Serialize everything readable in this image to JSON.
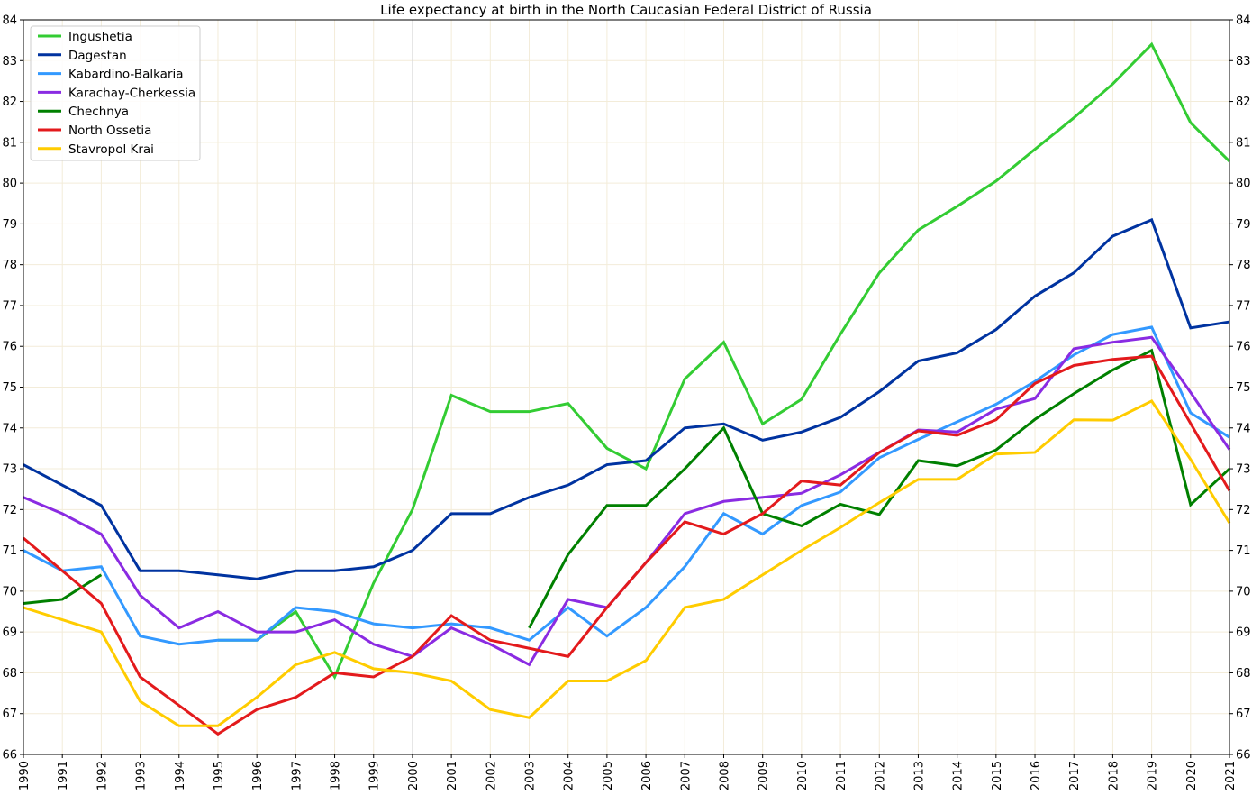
{
  "chart_data": {
    "type": "line",
    "title": "Life expectancy at birth in the North Caucasian Federal District of Russia",
    "xlabel": "",
    "ylabel": "",
    "x": [
      1990,
      1991,
      1992,
      1993,
      1994,
      1995,
      1996,
      1997,
      1998,
      1999,
      2000,
      2001,
      2002,
      2003,
      2004,
      2005,
      2006,
      2007,
      2008,
      2009,
      2010,
      2011,
      2012,
      2013,
      2014,
      2015,
      2016,
      2017,
      2018,
      2019,
      2020,
      2021
    ],
    "xlim": [
      1990,
      2021
    ],
    "ylim": [
      66,
      84
    ],
    "yticks": [
      66,
      67,
      68,
      69,
      70,
      71,
      72,
      73,
      74,
      75,
      76,
      77,
      78,
      79,
      80,
      81,
      82,
      83,
      84
    ],
    "grid": true,
    "highlight_x": 2000,
    "legend_position": "top-left",
    "series": [
      {
        "name": "Ingushetia",
        "color": "#33cc33",
        "values": [
          null,
          null,
          null,
          null,
          null,
          68.8,
          68.8,
          69.5,
          67.9,
          70.2,
          72.0,
          74.8,
          74.4,
          74.4,
          74.6,
          73.5,
          73.0,
          75.2,
          76.1,
          74.1,
          74.7,
          76.3,
          77.8,
          78.85,
          79.43,
          80.05,
          80.83,
          81.6,
          82.43,
          83.4,
          81.48,
          80.53
        ]
      },
      {
        "name": "Dagestan",
        "color": "#0033a0",
        "values": [
          73.1,
          72.6,
          72.1,
          70.5,
          70.5,
          70.4,
          70.3,
          70.5,
          70.5,
          70.6,
          71.0,
          71.9,
          71.9,
          72.3,
          72.6,
          73.1,
          73.2,
          74.0,
          74.1,
          73.7,
          73.9,
          74.26,
          74.89,
          75.64,
          75.84,
          76.41,
          77.23,
          77.8,
          78.7,
          79.1,
          76.45,
          76.6
        ]
      },
      {
        "name": "Kabardino-Balkaria",
        "color": "#3399ff",
        "values": [
          71.0,
          70.5,
          70.6,
          68.9,
          68.7,
          68.8,
          68.8,
          69.6,
          69.5,
          69.2,
          69.1,
          69.2,
          69.1,
          68.8,
          69.6,
          68.9,
          69.6,
          70.6,
          71.9,
          71.4,
          72.1,
          72.43,
          73.27,
          73.72,
          74.15,
          74.58,
          75.14,
          75.79,
          76.29,
          76.47,
          74.37,
          73.77
        ]
      },
      {
        "name": "Karachay-Cherkessia",
        "color": "#8a2be2",
        "values": [
          72.3,
          71.9,
          71.4,
          69.9,
          69.1,
          69.5,
          69.0,
          69.0,
          69.3,
          68.7,
          68.4,
          69.1,
          68.7,
          68.2,
          69.8,
          69.6,
          70.7,
          71.9,
          72.2,
          72.3,
          72.4,
          72.85,
          73.4,
          73.95,
          73.9,
          74.46,
          74.72,
          75.94,
          76.1,
          76.22,
          74.87,
          73.47
        ]
      },
      {
        "name": "Chechnya",
        "color": "#008000",
        "values": [
          69.7,
          69.8,
          70.4,
          null,
          null,
          null,
          null,
          null,
          null,
          null,
          null,
          null,
          null,
          69.1,
          70.9,
          72.1,
          72.1,
          73.0,
          74.0,
          71.9,
          71.6,
          72.13,
          71.88,
          73.2,
          73.07,
          73.46,
          74.21,
          74.84,
          75.42,
          75.9,
          72.12,
          73.0
        ]
      },
      {
        "name": "North Ossetia",
        "color": "#e31a1c",
        "values": [
          71.3,
          70.5,
          69.7,
          67.9,
          67.2,
          66.5,
          67.1,
          67.4,
          68.0,
          67.9,
          68.4,
          69.4,
          68.8,
          68.6,
          68.4,
          69.6,
          70.7,
          71.7,
          71.4,
          71.9,
          72.7,
          72.6,
          73.4,
          73.93,
          73.82,
          74.2,
          75.09,
          75.53,
          75.68,
          75.76,
          74.11,
          72.46
        ]
      },
      {
        "name": "Stavropol Krai",
        "color": "#ffcc00",
        "values": [
          69.6,
          69.3,
          69.0,
          67.3,
          66.7,
          66.7,
          67.4,
          68.2,
          68.5,
          68.1,
          68.0,
          67.8,
          67.1,
          66.9,
          67.8,
          67.8,
          68.3,
          69.6,
          69.8,
          70.4,
          71.0,
          71.56,
          72.17,
          72.74,
          72.74,
          73.36,
          73.4,
          74.2,
          74.19,
          74.66,
          73.23,
          71.67
        ]
      }
    ]
  }
}
